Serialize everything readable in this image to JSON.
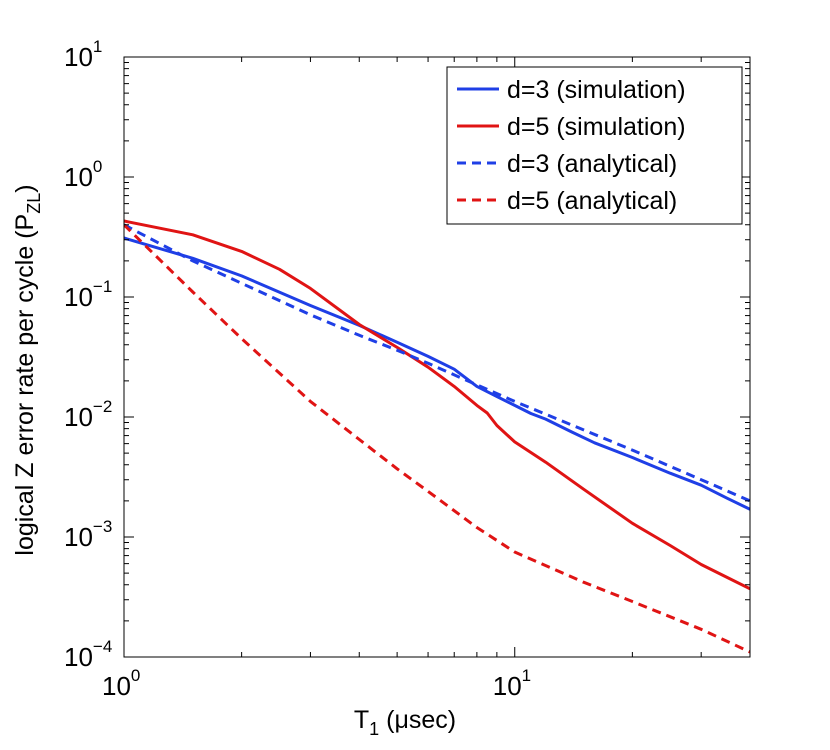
{
  "chart_data": {
    "type": "line",
    "title": "",
    "xlabel": {
      "base": "T",
      "sub": "1",
      "rest": " (μsec)"
    },
    "ylabel": {
      "base": "logical Z error rate per cycle (P",
      "sub": "ZL",
      "rest": ")"
    },
    "xscale": "log",
    "yscale": "log",
    "xlim": [
      1,
      40
    ],
    "ylim": [
      0.0001,
      10
    ],
    "x_ticks": [
      {
        "base": "10",
        "exp": "0",
        "value": 1
      },
      {
        "base": "10",
        "exp": "1",
        "value": 10
      }
    ],
    "y_ticks": [
      {
        "base": "10",
        "exp": "1",
        "value": 10
      },
      {
        "base": "10",
        "exp": "0",
        "value": 1
      },
      {
        "base": "10",
        "exp": "−1",
        "value": 0.1
      },
      {
        "base": "10",
        "exp": "−2",
        "value": 0.01
      },
      {
        "base": "10",
        "exp": "−3",
        "value": 0.001
      },
      {
        "base": "10",
        "exp": "−4",
        "value": 0.0001
      }
    ],
    "legend_position": "top-right",
    "series": [
      {
        "name": "d=3 (simulation)",
        "color": "#1f3fe6",
        "style": "solid",
        "x": [
          1,
          1.5,
          2,
          3,
          4,
          5,
          6,
          7,
          8,
          9,
          10,
          11,
          12,
          14,
          16,
          20,
          25,
          30,
          35,
          40
        ],
        "y": [
          0.31,
          0.21,
          0.15,
          0.085,
          0.058,
          0.042,
          0.032,
          0.025,
          0.018,
          0.0148,
          0.0125,
          0.0107,
          0.0096,
          0.0075,
          0.0061,
          0.0046,
          0.0034,
          0.0027,
          0.0021,
          0.0017
        ]
      },
      {
        "name": "d=5 (simulation)",
        "color": "#e01414",
        "style": "solid",
        "x": [
          1,
          1.5,
          2,
          2.5,
          3,
          4,
          5,
          6,
          7,
          8,
          8.5,
          9,
          10,
          12,
          15,
          20,
          25,
          30,
          35,
          40
        ],
        "y": [
          0.43,
          0.33,
          0.24,
          0.17,
          0.118,
          0.059,
          0.038,
          0.026,
          0.018,
          0.0125,
          0.0108,
          0.0085,
          0.0062,
          0.0042,
          0.0025,
          0.0013,
          0.00085,
          0.00059,
          0.00046,
          0.00037
        ]
      },
      {
        "name": "d=3 (analytical)",
        "color": "#1f3fe6",
        "style": "dashed",
        "x": [
          1,
          1.5,
          2,
          3,
          4,
          5,
          6,
          8,
          10,
          15,
          20,
          30,
          40
        ],
        "y": [
          0.4,
          0.2,
          0.13,
          0.071,
          0.048,
          0.036,
          0.028,
          0.0185,
          0.0135,
          0.0078,
          0.0053,
          0.003,
          0.002
        ]
      },
      {
        "name": "d=5 (analytical)",
        "color": "#e01414",
        "style": "dashed",
        "x": [
          1,
          1.5,
          2,
          3,
          4,
          5,
          6,
          8,
          10,
          15,
          20,
          30,
          40
        ],
        "y": [
          0.4,
          0.11,
          0.045,
          0.0135,
          0.0065,
          0.0037,
          0.0024,
          0.0012,
          0.00075,
          0.00042,
          0.00029,
          0.00017,
          0.00011
        ]
      }
    ]
  }
}
